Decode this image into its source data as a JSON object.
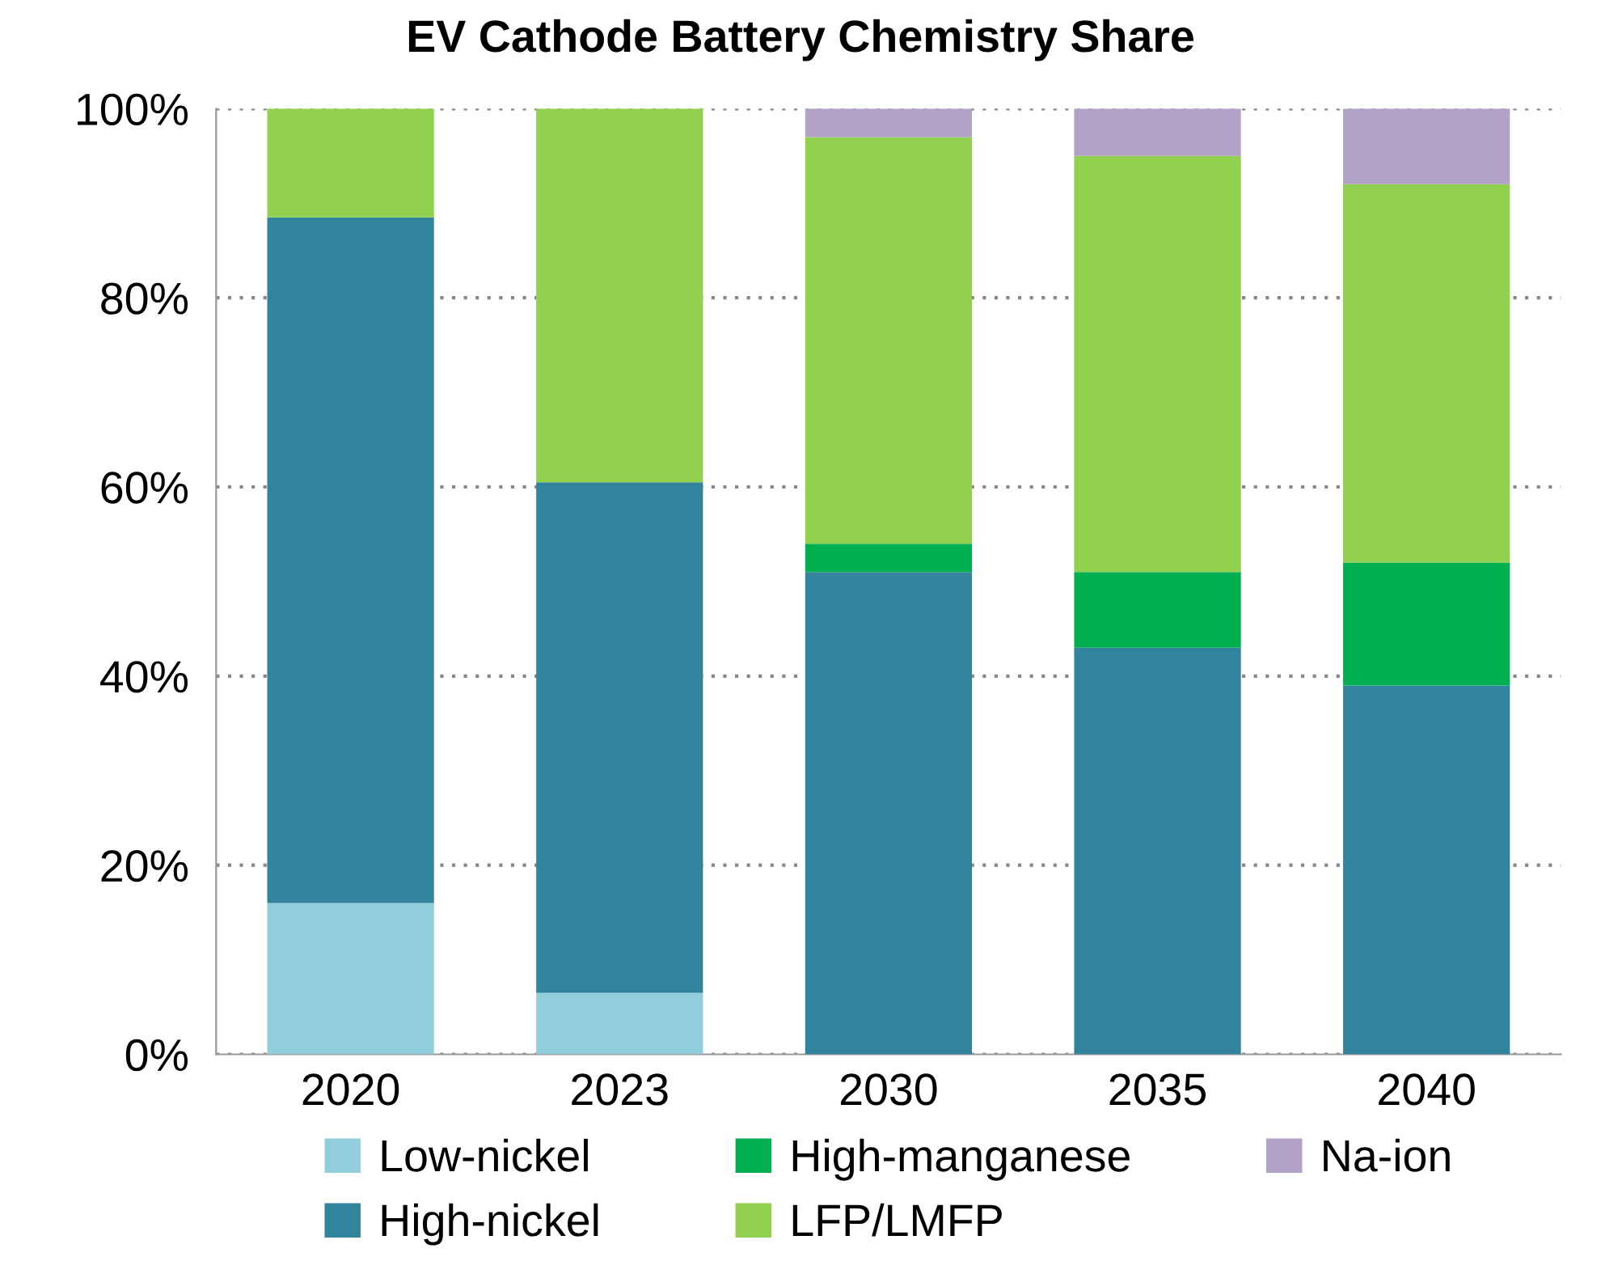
{
  "chart_data": {
    "type": "bar",
    "title": "EV Cathode Battery Chemistry Share",
    "stacked": true,
    "categories": [
      "2020",
      "2023",
      "2030",
      "2035",
      "2040"
    ],
    "series": [
      {
        "name": "Low-nickel",
        "color": "#92cddc",
        "values": [
          16,
          6.5,
          0,
          0,
          0
        ]
      },
      {
        "name": "High-nickel",
        "color": "#31849b",
        "values": [
          72.5,
          54,
          51,
          43,
          39
        ]
      },
      {
        "name": "High-manganese",
        "color": "#00b050",
        "values": [
          0,
          0,
          3,
          8,
          13
        ]
      },
      {
        "name": "LFP/LMFP",
        "color": "#92d050",
        "values": [
          11.5,
          39.5,
          43,
          44,
          40
        ]
      },
      {
        "name": "Na-ion",
        "color": "#b3a2c7",
        "values": [
          0,
          0,
          3,
          5,
          8
        ]
      }
    ],
    "ylim": [
      0,
      100
    ],
    "yticks": [
      {
        "value": 0,
        "label": "0%"
      },
      {
        "value": 20,
        "label": "20%"
      },
      {
        "value": 40,
        "label": "40%"
      },
      {
        "value": 60,
        "label": "60%"
      },
      {
        "value": 80,
        "label": "80%"
      },
      {
        "value": 100,
        "label": "100%"
      }
    ],
    "grid": "y",
    "legend": "bottom"
  }
}
